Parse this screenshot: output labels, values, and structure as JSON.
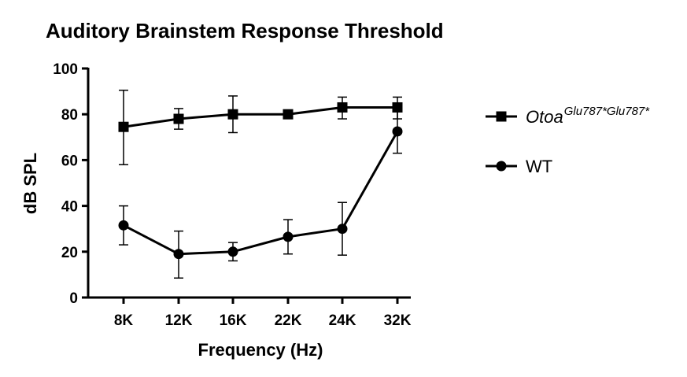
{
  "chart_data": {
    "type": "line",
    "title": "Auditory Brainstem Response Threshold",
    "xlabel": "Frequency (Hz)",
    "ylabel": "dB SPL",
    "categories": [
      "8K",
      "12K",
      "16K",
      "22K",
      "24K",
      "32K"
    ],
    "ylim": [
      0,
      100
    ],
    "yticks": [
      0,
      20,
      40,
      60,
      80,
      100
    ],
    "legend_position": "right",
    "series": [
      {
        "name": "Otoa",
        "name_superscript": "Glu787*Glu787*",
        "marker": "square",
        "values": [
          74.5,
          78,
          80,
          80,
          83,
          83
        ],
        "err_low": [
          58,
          73.5,
          72,
          80,
          78,
          78
        ],
        "err_high": [
          90.5,
          82.5,
          88,
          80,
          87.5,
          87.5
        ]
      },
      {
        "name": "WT",
        "marker": "circle",
        "values": [
          31.5,
          19,
          20,
          26.5,
          30,
          72.5
        ],
        "err_low": [
          23,
          8.5,
          16,
          19,
          18.5,
          63
        ],
        "err_high": [
          40,
          29,
          24,
          34,
          41.5,
          82
        ]
      }
    ],
    "color": "#000000"
  }
}
